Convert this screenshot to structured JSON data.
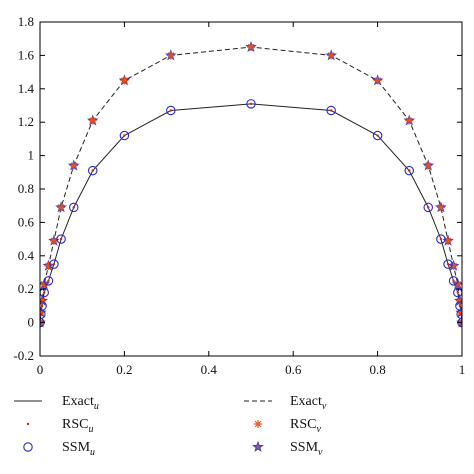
{
  "chart_data": {
    "type": "line",
    "title": "",
    "xlabel": "",
    "ylabel": "",
    "xlim": [
      0,
      1
    ],
    "ylim": [
      -0.2,
      1.8
    ],
    "grid": false,
    "xticks": [
      "0",
      "0.2",
      "0.4",
      "0.6",
      "0.8",
      "1"
    ],
    "yticks": [
      "-0.2",
      "0",
      "0.2",
      "0.4",
      "0.6",
      "0.8",
      "1",
      "1.2",
      "1.4",
      "1.6",
      "1.8"
    ],
    "x": [
      0.0,
      0.002,
      0.005,
      0.01,
      0.02,
      0.033,
      0.05,
      0.08,
      0.125,
      0.2,
      0.31,
      0.5,
      0.69,
      0.8,
      0.875,
      0.92,
      0.95,
      0.967,
      0.98,
      0.99,
      0.995,
      0.998,
      1.0
    ],
    "series": [
      {
        "name": "Exact_u",
        "label_main": "Exact",
        "label_sub": "u",
        "style": "solid-line",
        "values": [
          0.0,
          0.05,
          0.1,
          0.18,
          0.25,
          0.35,
          0.5,
          0.69,
          0.91,
          1.12,
          1.27,
          1.31,
          1.27,
          1.12,
          0.91,
          0.69,
          0.5,
          0.35,
          0.25,
          0.18,
          0.1,
          0.05,
          0.0
        ]
      },
      {
        "name": "Exact_v",
        "label_main": "Exact",
        "label_sub": "v",
        "style": "dashed-line",
        "values": [
          0.0,
          0.06,
          0.13,
          0.23,
          0.34,
          0.49,
          0.69,
          0.94,
          1.21,
          1.45,
          1.6,
          1.65,
          1.6,
          1.45,
          1.21,
          0.94,
          0.69,
          0.49,
          0.34,
          0.23,
          0.13,
          0.06,
          0.0
        ]
      },
      {
        "name": "RSC_u",
        "label_main": "RSC",
        "label_sub": "u",
        "style": "dot-marker",
        "color": "#d62020",
        "values": [
          0.0,
          0.05,
          0.1,
          0.18,
          0.25,
          0.35,
          0.5,
          0.69,
          0.91,
          1.12,
          1.27,
          1.31,
          1.27,
          1.12,
          0.91,
          0.69,
          0.5,
          0.35,
          0.25,
          0.18,
          0.1,
          0.05,
          0.0
        ]
      },
      {
        "name": "RSC_v",
        "label_main": "RSC",
        "label_sub": "v",
        "style": "asterisk-marker",
        "color": "#e8501c",
        "values": [
          0.0,
          0.06,
          0.13,
          0.23,
          0.34,
          0.49,
          0.69,
          0.94,
          1.21,
          1.45,
          1.6,
          1.65,
          1.6,
          1.45,
          1.21,
          0.94,
          0.69,
          0.49,
          0.34,
          0.23,
          0.13,
          0.06,
          0.0
        ]
      },
      {
        "name": "SSM_u",
        "label_main": "SSM",
        "label_sub": "u",
        "style": "circle-marker",
        "color": "#2a2ac8",
        "values": [
          0.0,
          0.05,
          0.1,
          0.18,
          0.25,
          0.35,
          0.5,
          0.69,
          0.91,
          1.12,
          1.27,
          1.31,
          1.27,
          1.12,
          0.91,
          0.69,
          0.5,
          0.35,
          0.25,
          0.18,
          0.1,
          0.05,
          0.0
        ]
      },
      {
        "name": "SSM_v",
        "label_main": "SSM",
        "label_sub": "v",
        "style": "star-marker",
        "color": "#3a3ab8",
        "values": [
          0.0,
          0.06,
          0.13,
          0.23,
          0.34,
          0.49,
          0.69,
          0.94,
          1.21,
          1.45,
          1.6,
          1.65,
          1.6,
          1.45,
          1.21,
          0.94,
          0.69,
          0.49,
          0.34,
          0.23,
          0.13,
          0.06,
          0.0
        ]
      }
    ],
    "legend_position": "bottom-outside"
  }
}
